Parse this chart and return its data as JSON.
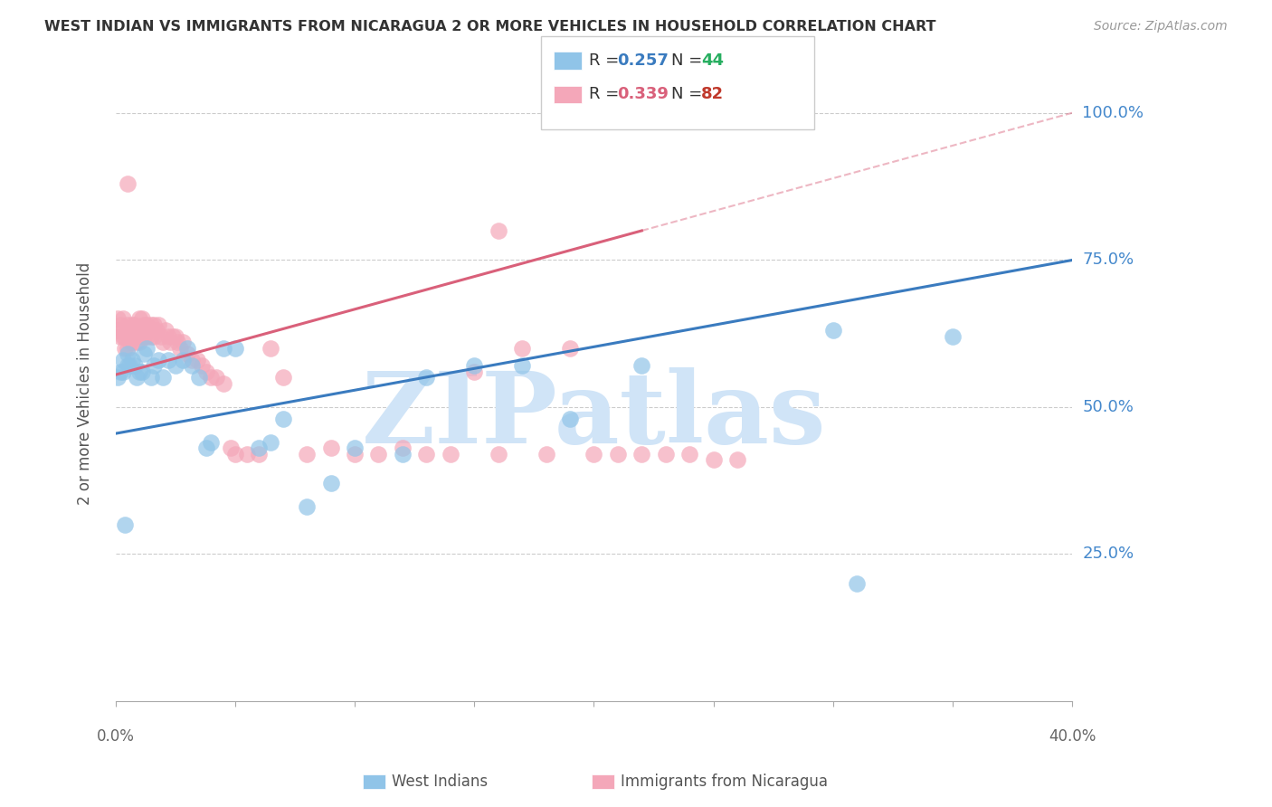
{
  "title": "WEST INDIAN VS IMMIGRANTS FROM NICARAGUA 2 OR MORE VEHICLES IN HOUSEHOLD CORRELATION CHART",
  "source": "Source: ZipAtlas.com",
  "ylabel": "2 or more Vehicles in Household",
  "xlim": [
    0.0,
    0.4
  ],
  "ylim": [
    0.0,
    1.08
  ],
  "yticks": [
    0.25,
    0.5,
    0.75,
    1.0
  ],
  "yticklabels": [
    "25.0%",
    "50.0%",
    "75.0%",
    "100.0%"
  ],
  "xtick_vals": [
    0.0,
    0.05,
    0.1,
    0.15,
    0.2,
    0.25,
    0.3,
    0.35,
    0.4
  ],
  "blue_color": "#90c4e8",
  "pink_color": "#f4a7b9",
  "blue_line_color": "#3a7bbf",
  "pink_line_color": "#d9607a",
  "legend_blue_r_color": "#3a7bbf",
  "legend_blue_n_color": "#27ae60",
  "legend_pink_r_color": "#d9607a",
  "legend_pink_n_color": "#c0392b",
  "watermark": "ZIPatlas",
  "watermark_color": "#d0e4f7",
  "legend_label_west": "West Indians",
  "legend_label_nicaragua": "Immigrants from Nicaragua",
  "blue_x": [
    0.001,
    0.002,
    0.003,
    0.003,
    0.004,
    0.005,
    0.005,
    0.006,
    0.007,
    0.008,
    0.009,
    0.01,
    0.011,
    0.012,
    0.013,
    0.015,
    0.016,
    0.018,
    0.02,
    0.022,
    0.025,
    0.028,
    0.03,
    0.032,
    0.035,
    0.038,
    0.04,
    0.045,
    0.05,
    0.06,
    0.065,
    0.07,
    0.08,
    0.09,
    0.1,
    0.12,
    0.13,
    0.15,
    0.17,
    0.19,
    0.22,
    0.3,
    0.35,
    0.31
  ],
  "blue_y": [
    0.55,
    0.56,
    0.56,
    0.58,
    0.3,
    0.57,
    0.59,
    0.57,
    0.58,
    0.57,
    0.55,
    0.56,
    0.56,
    0.59,
    0.6,
    0.55,
    0.57,
    0.58,
    0.55,
    0.58,
    0.57,
    0.58,
    0.6,
    0.57,
    0.55,
    0.43,
    0.44,
    0.6,
    0.6,
    0.43,
    0.44,
    0.48,
    0.33,
    0.37,
    0.43,
    0.42,
    0.55,
    0.57,
    0.57,
    0.48,
    0.57,
    0.63,
    0.62,
    0.2
  ],
  "pink_x": [
    0.001,
    0.001,
    0.002,
    0.002,
    0.003,
    0.003,
    0.003,
    0.004,
    0.004,
    0.005,
    0.005,
    0.005,
    0.006,
    0.006,
    0.007,
    0.007,
    0.007,
    0.008,
    0.008,
    0.009,
    0.009,
    0.01,
    0.01,
    0.01,
    0.011,
    0.011,
    0.012,
    0.012,
    0.013,
    0.013,
    0.014,
    0.015,
    0.015,
    0.016,
    0.016,
    0.017,
    0.018,
    0.019,
    0.02,
    0.021,
    0.022,
    0.023,
    0.024,
    0.025,
    0.026,
    0.027,
    0.028,
    0.03,
    0.032,
    0.034,
    0.036,
    0.038,
    0.04,
    0.042,
    0.045,
    0.048,
    0.05,
    0.055,
    0.06,
    0.065,
    0.07,
    0.08,
    0.09,
    0.1,
    0.11,
    0.12,
    0.13,
    0.14,
    0.15,
    0.16,
    0.17,
    0.18,
    0.19,
    0.2,
    0.21,
    0.22,
    0.23,
    0.24,
    0.25,
    0.26,
    0.005,
    0.16
  ],
  "pink_y": [
    0.63,
    0.65,
    0.62,
    0.64,
    0.62,
    0.63,
    0.65,
    0.6,
    0.62,
    0.6,
    0.62,
    0.64,
    0.61,
    0.63,
    0.61,
    0.63,
    0.64,
    0.62,
    0.64,
    0.61,
    0.63,
    0.61,
    0.63,
    0.65,
    0.63,
    0.65,
    0.62,
    0.64,
    0.62,
    0.64,
    0.63,
    0.62,
    0.64,
    0.62,
    0.64,
    0.63,
    0.64,
    0.62,
    0.61,
    0.63,
    0.62,
    0.61,
    0.62,
    0.62,
    0.61,
    0.6,
    0.61,
    0.59,
    0.58,
    0.58,
    0.57,
    0.56,
    0.55,
    0.55,
    0.54,
    0.43,
    0.42,
    0.42,
    0.42,
    0.6,
    0.55,
    0.42,
    0.43,
    0.42,
    0.42,
    0.43,
    0.42,
    0.42,
    0.56,
    0.42,
    0.6,
    0.42,
    0.6,
    0.42,
    0.42,
    0.42,
    0.42,
    0.42,
    0.41,
    0.41,
    0.88,
    0.8
  ],
  "blue_line_x0": 0.0,
  "blue_line_y0": 0.455,
  "blue_line_x1": 0.4,
  "blue_line_y1": 0.75,
  "pink_line_x0": 0.0,
  "pink_line_y0": 0.555,
  "pink_line_x1": 0.22,
  "pink_line_y1": 0.8
}
